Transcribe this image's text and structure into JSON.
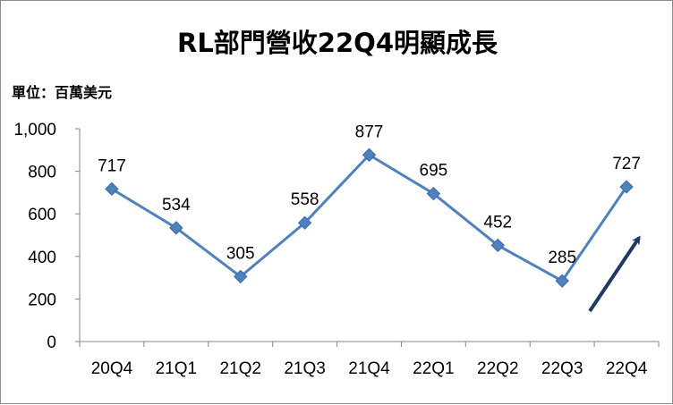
{
  "chart_data": {
    "type": "line",
    "title": "RL部門營收22Q4明顯成長",
    "unit_label": "單位：百萬美元",
    "categories": [
      "20Q4",
      "21Q1",
      "21Q2",
      "21Q3",
      "21Q4",
      "22Q1",
      "22Q2",
      "22Q3",
      "22Q4"
    ],
    "series": [
      {
        "values": [
          717,
          534,
          305,
          558,
          877,
          695,
          452,
          285,
          727
        ]
      }
    ],
    "data_labels": [
      "717",
      "534",
      "305",
      "558",
      "877",
      "695",
      "452",
      "285",
      "727"
    ],
    "y_ticks": [
      "0",
      "200",
      "400",
      "600",
      "800",
      "1,000"
    ],
    "y_tick_values": [
      0,
      200,
      400,
      600,
      800,
      1000
    ],
    "ylim": [
      0,
      1000
    ],
    "grid": false,
    "legend": "none",
    "series_color": "#4f81bd",
    "marker": "diamond",
    "annotation": "upward-arrow",
    "arrow_color": "#1f3864"
  }
}
